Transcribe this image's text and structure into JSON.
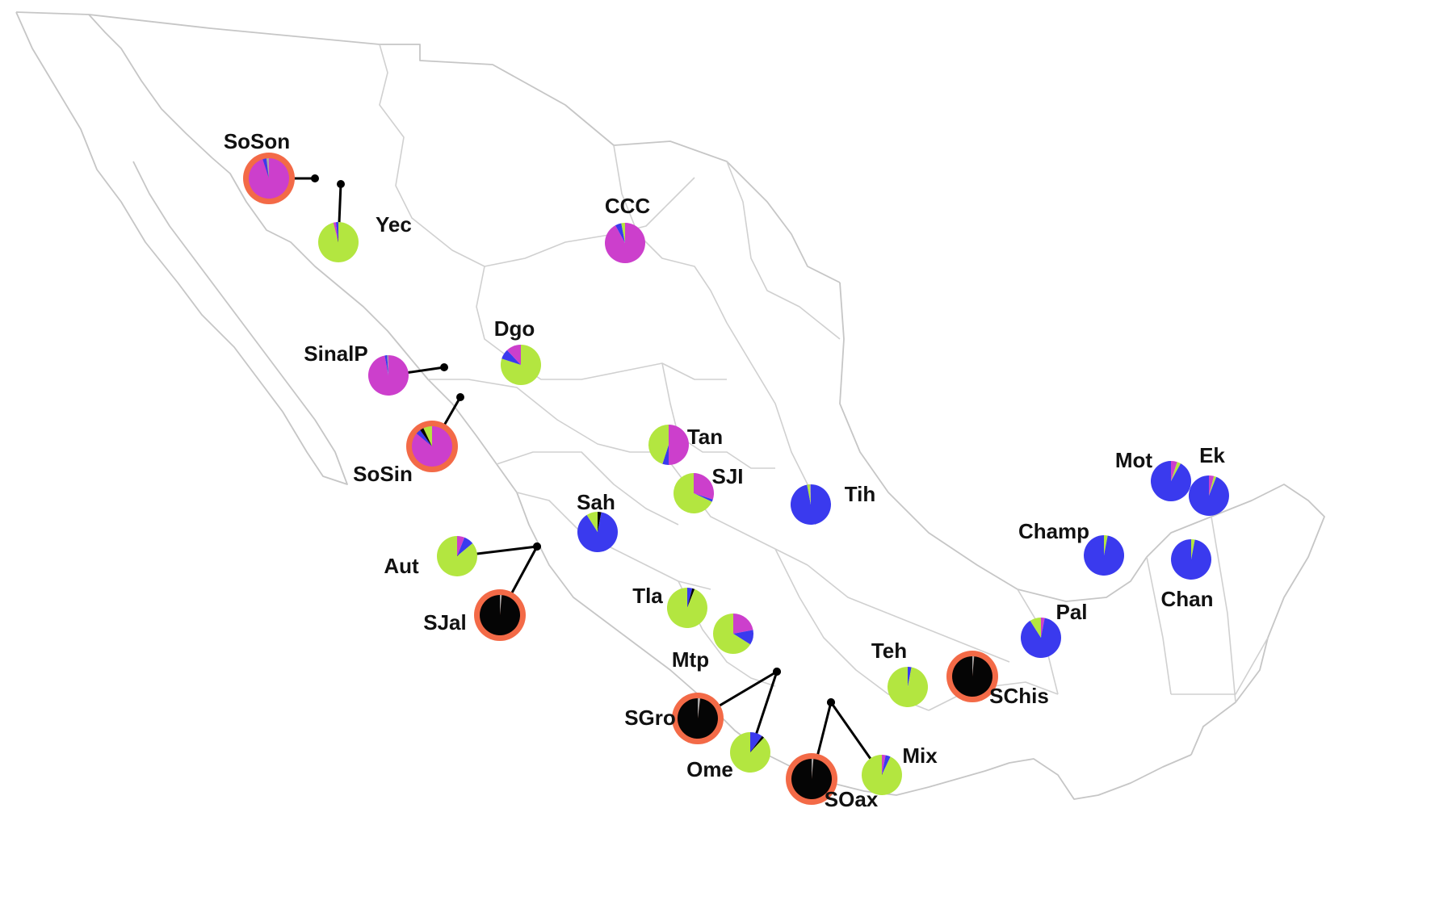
{
  "map": {
    "colors": {
      "magenta": "#cc3fcc",
      "green": "#b3e640",
      "blue": "#3a3aee",
      "black": "#050505",
      "grey": "#a8a8a8",
      "orange_ring": "#f36a47",
      "border": "#d0d0d0"
    },
    "sites": [
      {
        "id": "SoSon",
        "label": "SoSon",
        "ring": true,
        "composition": [
          [
            "magenta",
            0.95
          ],
          [
            "blue",
            0.03
          ],
          [
            "grey",
            0.02
          ]
        ]
      },
      {
        "id": "Yec",
        "label": "Yec",
        "ring": false,
        "composition": [
          [
            "green",
            0.96
          ],
          [
            "magenta",
            0.02
          ],
          [
            "blue",
            0.02
          ]
        ]
      },
      {
        "id": "CCC",
        "label": "CCC",
        "ring": false,
        "composition": [
          [
            "magenta",
            0.92
          ],
          [
            "blue",
            0.05
          ],
          [
            "green",
            0.03
          ]
        ]
      },
      {
        "id": "SinalP",
        "label": "SinalP",
        "ring": false,
        "composition": [
          [
            "magenta",
            0.97
          ],
          [
            "blue",
            0.02
          ],
          [
            "grey",
            0.01
          ]
        ]
      },
      {
        "id": "Dgo",
        "label": "Dgo",
        "ring": false,
        "composition": [
          [
            "green",
            0.8
          ],
          [
            "blue",
            0.08
          ],
          [
            "magenta",
            0.12
          ]
        ]
      },
      {
        "id": "SoSin",
        "label": "SoSin",
        "ring": true,
        "composition": [
          [
            "magenta",
            0.86
          ],
          [
            "blue",
            0.04
          ],
          [
            "black",
            0.03
          ],
          [
            "green",
            0.07
          ]
        ]
      },
      {
        "id": "Tan",
        "label": "Tan",
        "ring": false,
        "composition": [
          [
            "magenta",
            0.5
          ],
          [
            "blue",
            0.05
          ],
          [
            "green",
            0.45
          ]
        ]
      },
      {
        "id": "SJI",
        "label": "SJI",
        "ring": false,
        "composition": [
          [
            "magenta",
            0.3
          ],
          [
            "blue",
            0.02
          ],
          [
            "green",
            0.68
          ]
        ]
      },
      {
        "id": "Sah",
        "label": "Sah",
        "ring": false,
        "composition": [
          [
            "black",
            0.03
          ],
          [
            "blue",
            0.88
          ],
          [
            "green",
            0.09
          ]
        ]
      },
      {
        "id": "Tih",
        "label": "Tih",
        "ring": false,
        "composition": [
          [
            "blue",
            0.97
          ],
          [
            "green",
            0.02
          ],
          [
            "grey",
            0.01
          ]
        ]
      },
      {
        "id": "Aut",
        "label": "Aut",
        "ring": false,
        "composition": [
          [
            "magenta",
            0.06
          ],
          [
            "blue",
            0.08
          ],
          [
            "green",
            0.86
          ]
        ]
      },
      {
        "id": "SJal",
        "label": "SJal",
        "ring": true,
        "composition": [
          [
            "grey",
            0.015
          ],
          [
            "black",
            0.985
          ]
        ]
      },
      {
        "id": "Tla",
        "label": "Tla",
        "ring": false,
        "composition": [
          [
            "blue",
            0.04
          ],
          [
            "black",
            0.02
          ],
          [
            "green",
            0.94
          ]
        ]
      },
      {
        "id": "Mtp",
        "label": "Mtp",
        "ring": false,
        "composition": [
          [
            "magenta",
            0.22
          ],
          [
            "blue",
            0.12
          ],
          [
            "green",
            0.66
          ]
        ]
      },
      {
        "id": "Teh",
        "label": "Teh",
        "ring": false,
        "composition": [
          [
            "blue",
            0.03
          ],
          [
            "green",
            0.97
          ]
        ]
      },
      {
        "id": "SChis",
        "label": "SChis",
        "ring": true,
        "composition": [
          [
            "grey",
            0.015
          ],
          [
            "black",
            0.985
          ]
        ]
      },
      {
        "id": "SGro",
        "label": "SGro",
        "ring": true,
        "composition": [
          [
            "grey",
            0.02
          ],
          [
            "black",
            0.98
          ]
        ]
      },
      {
        "id": "Ome",
        "label": "Ome",
        "ring": false,
        "composition": [
          [
            "blue",
            0.1
          ],
          [
            "black",
            0.02
          ],
          [
            "green",
            0.88
          ]
        ]
      },
      {
        "id": "SOax",
        "label": "SOax",
        "ring": true,
        "composition": [
          [
            "grey",
            0.015
          ],
          [
            "black",
            0.985
          ]
        ]
      },
      {
        "id": "Mix",
        "label": "Mix",
        "ring": false,
        "composition": [
          [
            "magenta",
            0.03
          ],
          [
            "blue",
            0.04
          ],
          [
            "green",
            0.93
          ]
        ]
      },
      {
        "id": "Pal",
        "label": "Pal",
        "ring": false,
        "composition": [
          [
            "magenta",
            0.03
          ],
          [
            "blue",
            0.88
          ],
          [
            "green",
            0.09
          ]
        ]
      },
      {
        "id": "Champ",
        "label": "Champ",
        "ring": false,
        "composition": [
          [
            "green",
            0.03
          ],
          [
            "blue",
            0.97
          ]
        ]
      },
      {
        "id": "Chan",
        "label": "Chan",
        "ring": false,
        "composition": [
          [
            "green",
            0.03
          ],
          [
            "blue",
            0.97
          ]
        ]
      },
      {
        "id": "Mot",
        "label": "Mot",
        "ring": false,
        "composition": [
          [
            "magenta",
            0.05
          ],
          [
            "green",
            0.03
          ],
          [
            "blue",
            0.92
          ]
        ]
      },
      {
        "id": "Ek",
        "label": "Ek",
        "ring": false,
        "composition": [
          [
            "magenta",
            0.04
          ],
          [
            "green",
            0.02
          ],
          [
            "blue",
            0.94
          ]
        ]
      }
    ]
  }
}
